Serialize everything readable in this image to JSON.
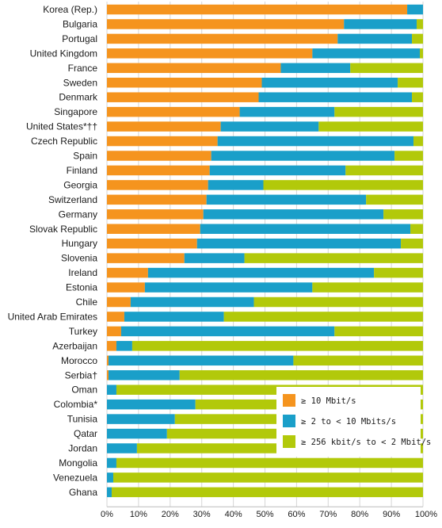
{
  "chart_data": {
    "type": "bar",
    "orientation": "horizontal",
    "stacked": true,
    "percent_stacked": true,
    "categories": [
      "Korea (Rep.)",
      "Bulgaria",
      "Portugal",
      "United Kingdom",
      "France",
      "Sweden",
      "Denmark",
      "Singapore",
      "United States*††",
      "Czech Republic",
      "Spain",
      "Finland",
      "Georgia",
      "Switzerland",
      "Germany",
      "Slovak Republic",
      "Hungary",
      "Slovenia",
      "Ireland",
      "Estonia",
      "Chile",
      "United Arab Emirates",
      "Turkey",
      "Azerbaijan",
      "Morocco",
      "Serbia†",
      "Oman",
      "Colombia*",
      "Tunisia",
      "Qatar",
      "Jordan",
      "Mongolia",
      "Venezuela",
      "Ghana"
    ],
    "series": [
      {
        "name": "≥ 10 Mbit/s",
        "color": "#f5941e",
        "values": [
          95,
          75,
          73,
          65,
          55,
          49,
          48,
          42,
          36,
          35,
          33,
          32.5,
          32,
          31.5,
          30.5,
          29.5,
          28.5,
          24.5,
          13,
          12,
          7.5,
          5.5,
          4.5,
          3,
          0.5,
          0.5,
          0,
          0,
          0,
          0,
          0,
          0,
          0,
          0
        ]
      },
      {
        "name": "≥ 2 to < 10 Mbits/s",
        "color": "#1a9fc9",
        "values": [
          5,
          23,
          23.5,
          34,
          22,
          43,
          48.5,
          30,
          31,
          62,
          58,
          43,
          17.5,
          50.5,
          57,
          66.5,
          64.5,
          19,
          71.5,
          53,
          39,
          31.5,
          67.5,
          5,
          58.5,
          22.5,
          3,
          28,
          21.5,
          19,
          9.5,
          3,
          2,
          1.5
        ]
      },
      {
        "name": "≥ 256 kbit/s to < 2 Mbit/s",
        "color": "#b2c90a",
        "values": [
          0,
          2,
          3.5,
          1,
          23,
          8,
          3.5,
          28,
          33,
          3,
          9,
          24.5,
          50.5,
          18,
          12.5,
          4,
          7,
          56.5,
          15.5,
          35,
          53.5,
          63,
          28,
          92,
          41,
          77,
          97,
          72,
          78.5,
          81,
          90.5,
          97,
          98,
          98.5
        ]
      }
    ],
    "xlim": [
      0,
      100
    ],
    "x_ticks": [
      "0%",
      "10%",
      "20%",
      "30%",
      "40%",
      "50%",
      "60%",
      "70%",
      "80%",
      "90%",
      "100%"
    ],
    "grid": true,
    "legend_position": "lower-right"
  }
}
